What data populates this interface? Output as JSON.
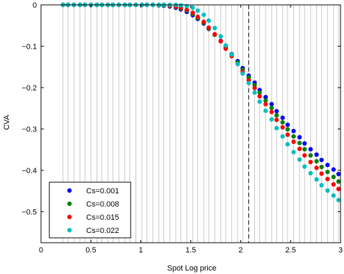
{
  "chart_data": {
    "type": "scatter",
    "xlabel": "Spot Log price",
    "ylabel": "CVA",
    "xlim": [
      0,
      3
    ],
    "ylim": [
      -0.575,
      0
    ],
    "xticks": [
      0,
      0.5,
      1,
      1.5,
      2,
      2.5,
      3
    ],
    "xtick_labels": [
      "0",
      "0.5",
      "1",
      "1.5",
      "2",
      "2.5",
      "3"
    ],
    "yticks": [
      0,
      -0.1,
      -0.2,
      -0.3,
      -0.4,
      -0.5
    ],
    "ytick_labels": [
      "0",
      "−0.1",
      "−0.2",
      "−0.3",
      "−0.4",
      "−0.5"
    ],
    "grid": "vertical lines at each x sample",
    "reference_line": {
      "x": 2.08,
      "style": "dashed"
    },
    "legend_position": "bottom-left",
    "x": [
      0.22,
      0.27,
      0.33,
      0.39,
      0.44,
      0.5,
      0.56,
      0.61,
      0.67,
      0.72,
      0.78,
      0.84,
      0.89,
      0.95,
      1.01,
      1.06,
      1.12,
      1.18,
      1.23,
      1.29,
      1.35,
      1.4,
      1.46,
      1.52,
      1.57,
      1.63,
      1.68,
      1.74,
      1.8,
      1.85,
      1.91,
      1.97,
      2.02,
      2.08,
      2.14,
      2.19,
      2.25,
      2.31,
      2.36,
      2.42,
      2.47,
      2.53,
      2.59,
      2.64,
      2.7,
      2.76,
      2.81,
      2.87,
      2.93,
      2.98
    ],
    "series": [
      {
        "name": "Cs=0.001",
        "color": "#0000ff",
        "values": [
          0,
          0,
          0,
          0,
          0,
          0,
          0,
          0,
          0,
          0,
          0,
          0,
          0,
          0,
          0,
          0,
          0,
          -0.001,
          -0.002,
          -0.004,
          -0.007,
          -0.011,
          -0.017,
          -0.025,
          -0.034,
          -0.045,
          -0.058,
          -0.072,
          -0.087,
          -0.103,
          -0.119,
          -0.136,
          -0.153,
          -0.171,
          -0.188,
          -0.206,
          -0.223,
          -0.24,
          -0.257,
          -0.273,
          -0.29,
          -0.305,
          -0.32,
          -0.335,
          -0.349,
          -0.362,
          -0.375,
          -0.387,
          -0.398,
          -0.409
        ]
      },
      {
        "name": "Cs=0.008",
        "color": "#008000",
        "values": [
          0,
          0,
          0,
          0,
          0,
          0,
          0,
          0,
          0,
          0,
          0,
          0,
          0,
          0,
          0,
          0,
          0,
          -0.001,
          -0.001,
          -0.003,
          -0.005,
          -0.009,
          -0.014,
          -0.022,
          -0.032,
          -0.043,
          -0.057,
          -0.072,
          -0.088,
          -0.104,
          -0.121,
          -0.139,
          -0.157,
          -0.175,
          -0.194,
          -0.212,
          -0.231,
          -0.249,
          -0.267,
          -0.284,
          -0.301,
          -0.318,
          -0.334,
          -0.349,
          -0.364,
          -0.378,
          -0.392,
          -0.404,
          -0.416,
          -0.427
        ]
      },
      {
        "name": "Cs=0.015",
        "color": "#ff0000",
        "values": [
          0,
          0,
          0,
          0,
          0,
          0,
          0,
          0,
          0,
          0,
          0,
          0,
          0,
          0,
          0,
          0,
          0,
          0,
          0,
          -0.002,
          -0.004,
          -0.007,
          -0.012,
          -0.019,
          -0.029,
          -0.041,
          -0.055,
          -0.071,
          -0.088,
          -0.106,
          -0.124,
          -0.143,
          -0.162,
          -0.182,
          -0.201,
          -0.221,
          -0.24,
          -0.259,
          -0.278,
          -0.296,
          -0.314,
          -0.331,
          -0.348,
          -0.364,
          -0.38,
          -0.394,
          -0.408,
          -0.421,
          -0.434,
          -0.445
        ]
      },
      {
        "name": "Cs=0.022",
        "color": "#00bfbf",
        "values": [
          0,
          0,
          0,
          0,
          0,
          0,
          0,
          0,
          0,
          0,
          0,
          0,
          0,
          0,
          0,
          0,
          0,
          0,
          0,
          0,
          0,
          -0.001,
          -0.003,
          -0.007,
          -0.014,
          -0.024,
          -0.038,
          -0.056,
          -0.076,
          -0.098,
          -0.12,
          -0.143,
          -0.166,
          -0.189,
          -0.212,
          -0.234,
          -0.256,
          -0.277,
          -0.298,
          -0.318,
          -0.337,
          -0.356,
          -0.374,
          -0.391,
          -0.407,
          -0.422,
          -0.436,
          -0.449,
          -0.461,
          -0.472
        ]
      }
    ]
  }
}
